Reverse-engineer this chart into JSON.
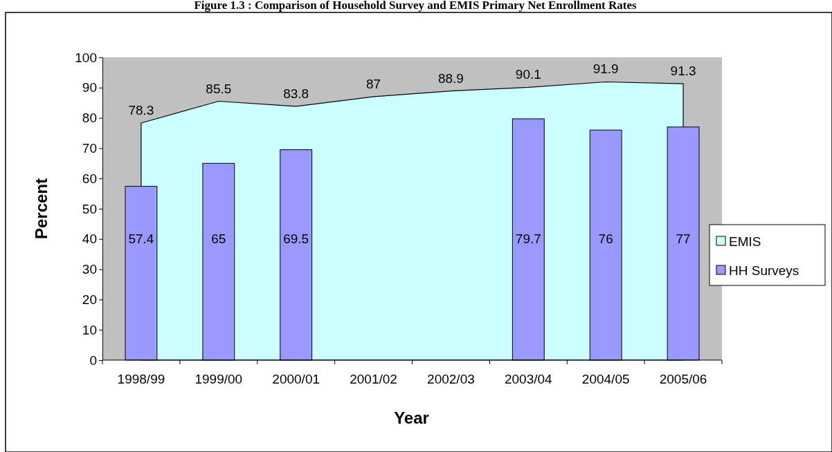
{
  "chart_data": {
    "type": "bar",
    "title": "Figure 1.3 : Comparison of Household Survey and EMIS Primary Net Enrollment Rates",
    "xlabel": "Year",
    "ylabel": "Percent",
    "categories": [
      "1998/99",
      "1999/00",
      "2000/01",
      "2001/02",
      "2002/03",
      "2003/04",
      "2004/05",
      "2005/06"
    ],
    "series": [
      {
        "name": "EMIS",
        "type": "area",
        "color": "#ccffff",
        "values": [
          78.3,
          85.5,
          83.8,
          87,
          88.9,
          90.1,
          91.9,
          91.3
        ]
      },
      {
        "name": "HH Surveys",
        "color": "#9999ff",
        "values": [
          57.4,
          65,
          69.5,
          null,
          null,
          79.7,
          76,
          77
        ]
      }
    ],
    "ylim": [
      0,
      100
    ],
    "yticks": [
      0,
      10,
      20,
      30,
      40,
      50,
      60,
      70,
      80,
      90,
      100
    ],
    "data_labels": true,
    "legend": "right",
    "grid": false
  }
}
